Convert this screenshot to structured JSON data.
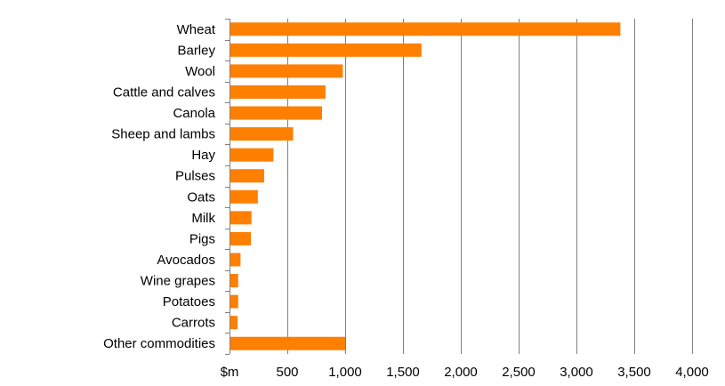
{
  "chart_data": {
    "type": "bar",
    "orientation": "horizontal",
    "categories": [
      "Wheat",
      "Barley",
      "Wool",
      "Cattle and calves",
      "Canola",
      "Sheep and lambs",
      "Hay",
      "Pulses",
      "Oats",
      "Milk",
      "Pigs",
      "Avocados",
      "Wine grapes",
      "Potatoes",
      "Carrots",
      "Other commodities"
    ],
    "values": [
      3380,
      1660,
      980,
      830,
      800,
      550,
      380,
      300,
      245,
      190,
      185,
      95,
      75,
      75,
      70,
      1000
    ],
    "xlabel": "$m",
    "ylabel": "",
    "xlim": [
      0,
      4000
    ],
    "ticks": [
      0,
      500,
      1000,
      1500,
      2000,
      2500,
      3000,
      3500,
      4000
    ],
    "tick_labels": [
      "$m",
      "500",
      "1,000",
      "1,500",
      "2,000",
      "2,500",
      "3,000",
      "3,500",
      "4,000"
    ],
    "grid": "vertical",
    "bar_color": "#FF7F00"
  }
}
